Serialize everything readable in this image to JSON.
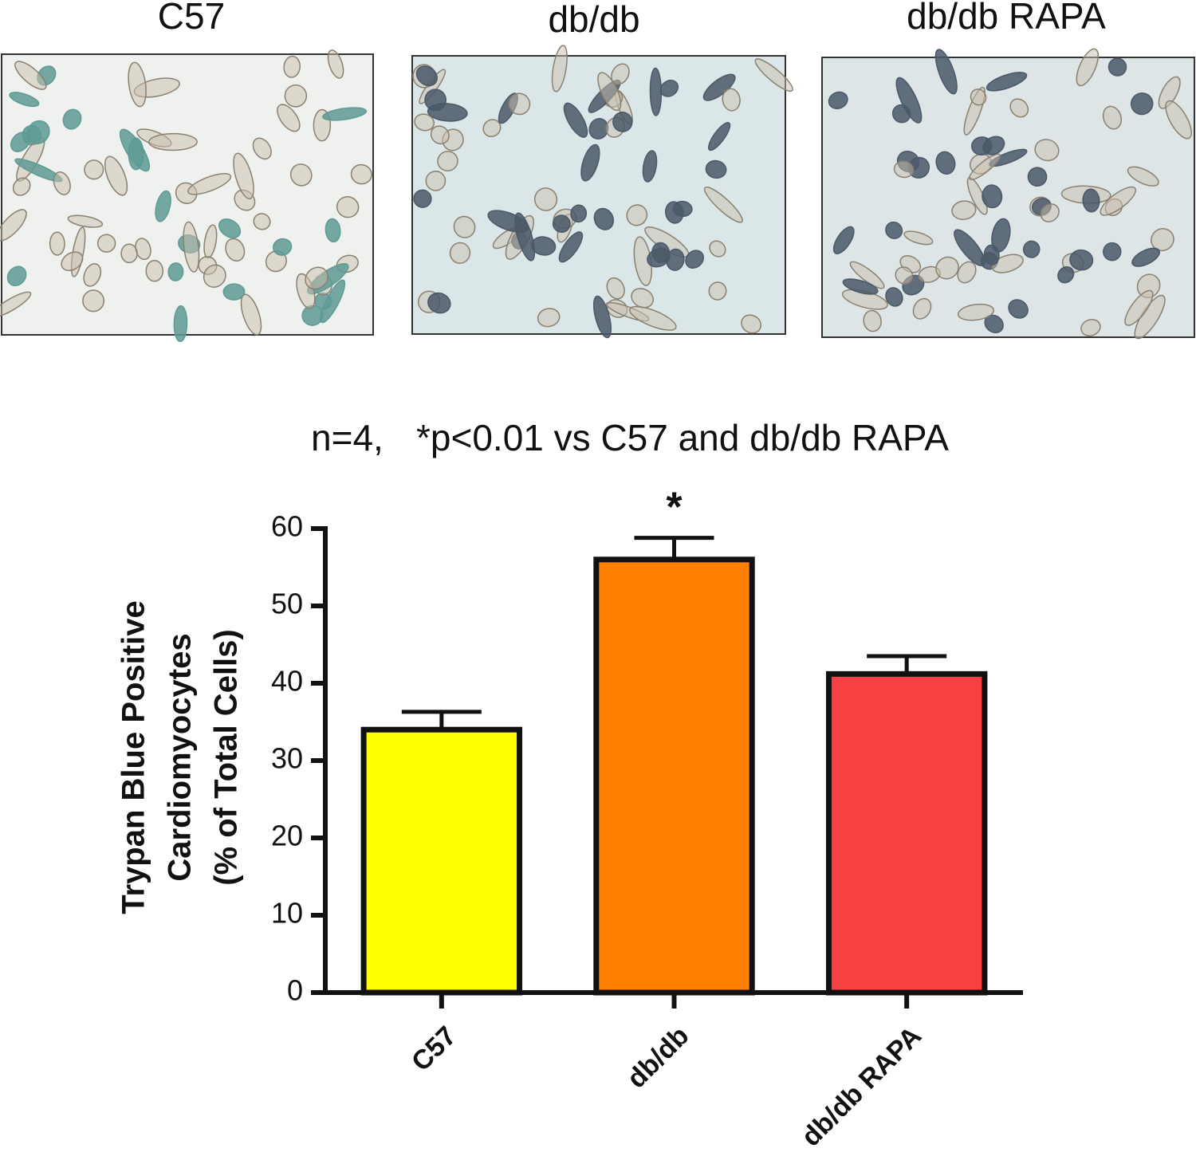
{
  "panels": [
    {
      "label": "C57"
    },
    {
      "label": "db/db"
    },
    {
      "label": "db/db RAPA"
    }
  ],
  "chart_data": {
    "type": "bar",
    "title": "n=4,",
    "subtitle": "*p<0.01 vs C57 and db/db RAPA",
    "ylabel": [
      "Trypan Blue Positive",
      "Cardiomyocytes",
      "(% of Total Cells)"
    ],
    "categories": [
      "C57",
      "db/db",
      "db/db RAPA"
    ],
    "values": [
      34,
      56,
      41.2
    ],
    "errors": [
      2.3,
      2.8,
      2.3
    ],
    "colors": [
      "#ffff00",
      "#ff8000",
      "#f94040"
    ],
    "annotations": [
      {
        "text": "*",
        "category": "db/db"
      }
    ],
    "ylim": [
      0,
      60
    ],
    "yticks": [
      0,
      10,
      20,
      30,
      40,
      50,
      60
    ],
    "grid": false
  }
}
